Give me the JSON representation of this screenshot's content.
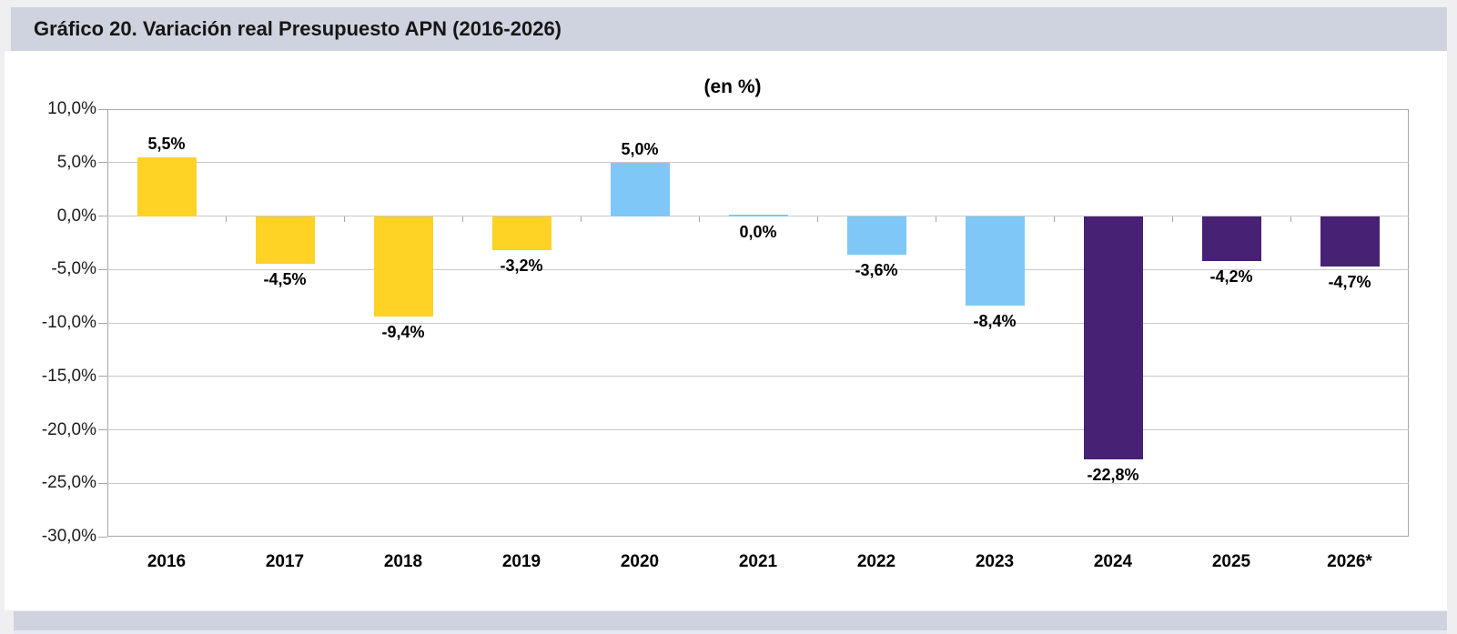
{
  "header": {
    "title": "Gráfico 20. Variación real Presupuesto APN (2016-2026)"
  },
  "chart_data": {
    "type": "bar",
    "title": "Gráfico 20. Variación real Presupuesto APN (2016-2026)",
    "subtitle": "(en %)",
    "categories": [
      "2016",
      "2017",
      "2018",
      "2019",
      "2020",
      "2021",
      "2022",
      "2023",
      "2024",
      "2025",
      "2026*"
    ],
    "values": [
      5.5,
      -4.5,
      -9.4,
      -3.2,
      5.0,
      0.0,
      -3.6,
      -8.4,
      -22.8,
      -4.2,
      -4.7
    ],
    "value_labels": [
      "5,5%",
      "-4,5%",
      "-9,4%",
      "-3,2%",
      "5,0%",
      "0,0%",
      "-3,6%",
      "-8,4%",
      "-22,8%",
      "-4,2%",
      "-4,7%"
    ],
    "bar_colors": [
      "#FFD226",
      "#FFD226",
      "#FFD226",
      "#FFD226",
      "#7FC7F6",
      "#7FC7F6",
      "#7FC7F6",
      "#7FC7F6",
      "#472173",
      "#472173",
      "#472173"
    ],
    "y_ticks": [
      "10,0%",
      "5,0%",
      "0,0%",
      "-5,0%",
      "-10,0%",
      "-15,0%",
      "-20,0%",
      "-25,0%",
      "-30,0%"
    ],
    "y_tick_values": [
      10,
      5,
      0,
      -5,
      -10,
      -15,
      -20,
      -25,
      -30
    ],
    "ylim": [
      -30,
      10
    ],
    "grid": true,
    "legend": "none",
    "xlabel": "",
    "ylabel": ""
  },
  "colors": {
    "page_bg": "#EFEFF1",
    "band_bg": "#CFD3DF",
    "panel_bg": "#FFFFFF",
    "plot_border": "#A8A8A8",
    "gridline": "#C9C9C9",
    "yellow_series": "#FFD226",
    "blue_series": "#7FC7F6",
    "purple_series": "#472173"
  }
}
